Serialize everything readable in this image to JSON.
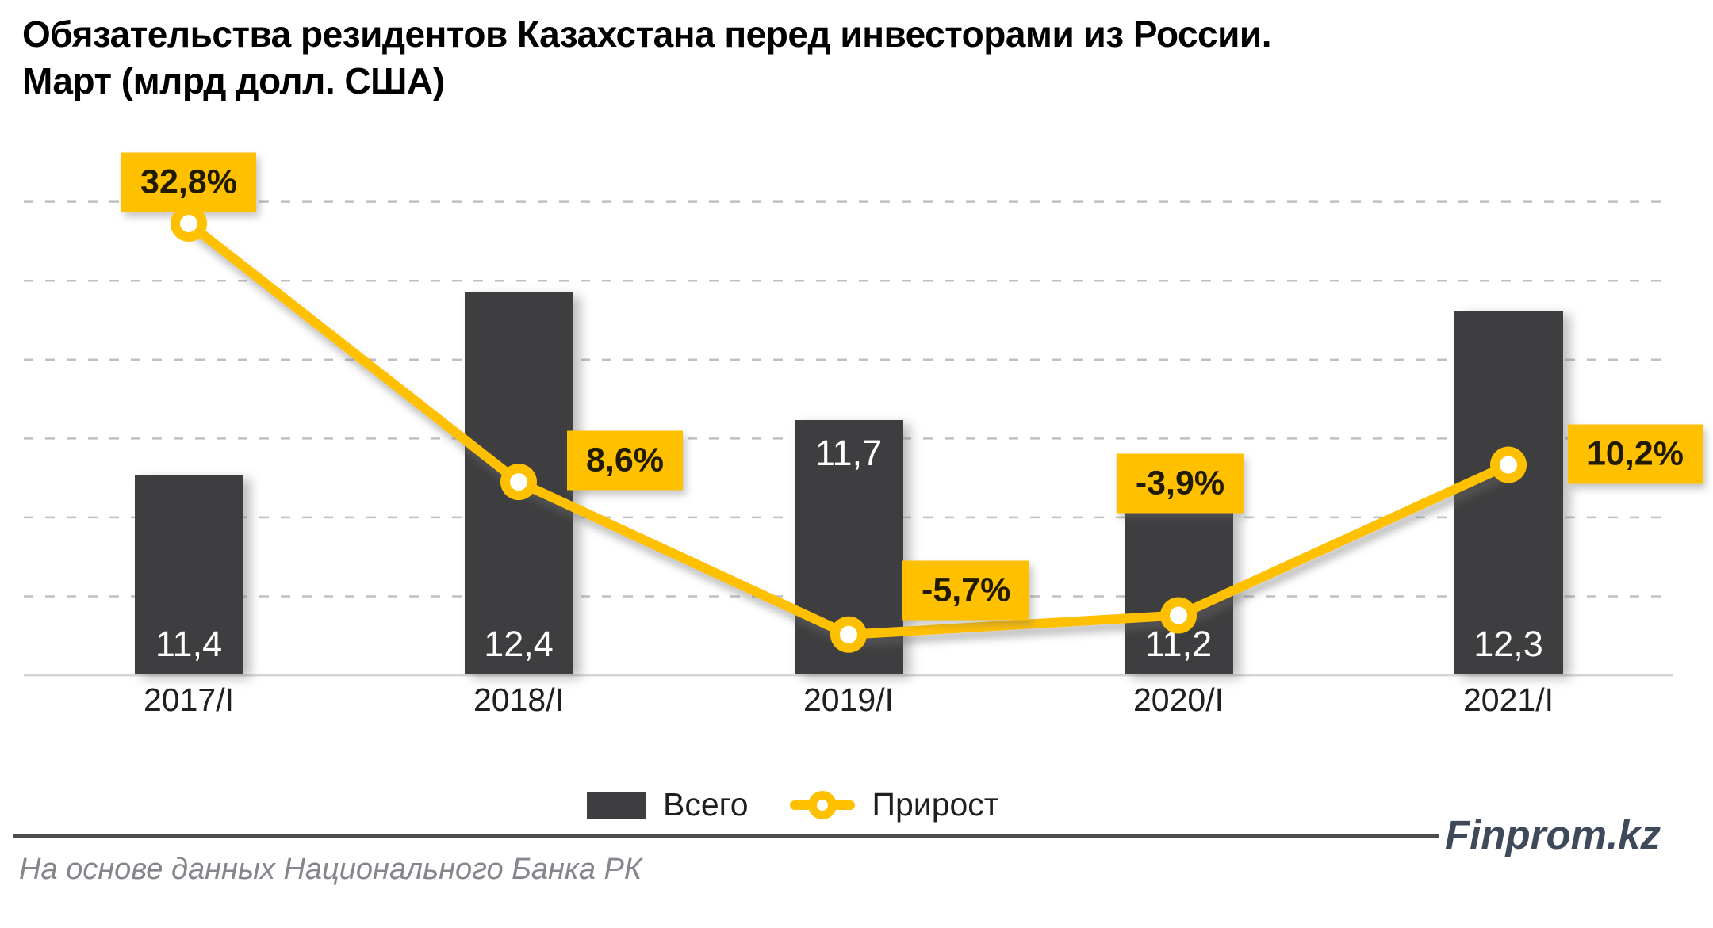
{
  "title": {
    "line1": "Обязательства резидентов Казахстана перед инвесторами из России.",
    "line2": "Март (млрд долл. США)"
  },
  "chart_data": {
    "type": "combo bar+line",
    "title": "Обязательства резидентов Казахстана перед инвесторами из России. Март (млрд долл. США)",
    "categories": [
      "2017/I",
      "2018/I",
      "2019/I",
      "2020/I",
      "2021/I"
    ],
    "series": [
      {
        "name": "Всего",
        "type": "bar",
        "values": [
          11.4,
          12.4,
          11.7,
          11.2,
          12.3
        ],
        "labels": [
          "11,4",
          "12,4",
          "11,7",
          "11,2",
          "12,3"
        ],
        "color": "#3e3e40",
        "ylim": [
          10.3,
          13.2
        ]
      },
      {
        "name": "Прирост",
        "type": "line",
        "values": [
          32.8,
          8.6,
          -5.7,
          -3.9,
          10.2
        ],
        "labels": [
          "32,8%",
          "8,6%",
          "-5,7%",
          "-3,9%",
          "10,2%"
        ],
        "color": "#ffc000",
        "ylim": [
          -9.5,
          40
        ]
      }
    ],
    "grid": "horizontal dashed, 6 lines, solid baseline",
    "legend_position": "bottom-center",
    "bar_value_label_positions": [
      "in-bottom",
      "in-bottom",
      "in-top",
      "in-bottom",
      "in-bottom"
    ],
    "line_label_placements": [
      "above-marker",
      "right-of-marker",
      "right-above-marker",
      "above-bar",
      "right-of-marker"
    ]
  },
  "legend": {
    "items": [
      {
        "label": "Всего",
        "swatch": "bar"
      },
      {
        "label": "Прирост",
        "swatch": "line-marker"
      }
    ]
  },
  "footer": {
    "source": "На основе данных Национального Банка РК",
    "brand": "Finprom.kz"
  },
  "colors": {
    "accent": "#ffc000",
    "bar": "#3e3e40",
    "grid": "#c0c0c0",
    "axis_line": "#d6d6d6",
    "text": "#1f1f1f",
    "label_on_accent": "#201a00",
    "bar_label": "#ffffff",
    "muted": "#85858b",
    "brand": "#3e4a5a"
  }
}
